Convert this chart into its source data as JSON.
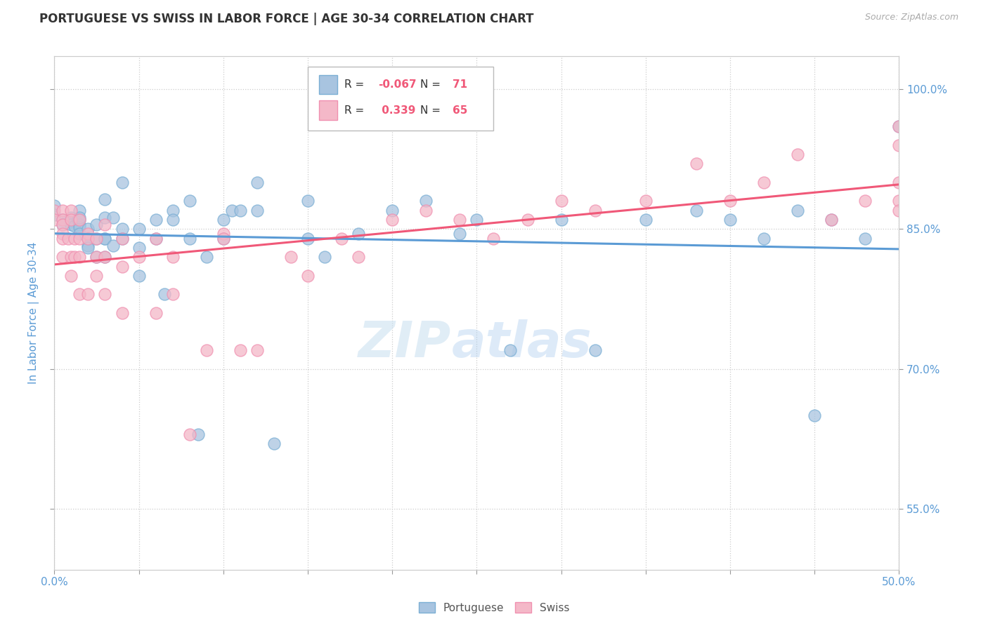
{
  "title": "PORTUGUESE VS SWISS IN LABOR FORCE | AGE 30-34 CORRELATION CHART",
  "source_text": "Source: ZipAtlas.com",
  "ylabel": "In Labor Force | Age 30-34",
  "xlim": [
    0.0,
    0.5
  ],
  "ylim": [
    0.485,
    1.035
  ],
  "ytick_right_labels": [
    "55.0%",
    "70.0%",
    "85.0%",
    "100.0%"
  ],
  "ytick_right_values": [
    0.55,
    0.7,
    0.85,
    1.0
  ],
  "ytick_grid_values": [
    0.55,
    0.7,
    0.85,
    1.0
  ],
  "xtick_labels": [
    "0.0%",
    "",
    "",
    "",
    "",
    "",
    "",
    "",
    "",
    "",
    "50.0%"
  ],
  "xtick_values": [
    0.0,
    0.05,
    0.1,
    0.15,
    0.2,
    0.25,
    0.3,
    0.35,
    0.4,
    0.45,
    0.5
  ],
  "blue_color": "#a8c4e0",
  "pink_color": "#f4b8c8",
  "blue_edge_color": "#7bafd4",
  "pink_edge_color": "#f090b0",
  "blue_line_color": "#5b9bd5",
  "pink_line_color": "#f05878",
  "R_blue": -0.067,
  "N_blue": 71,
  "R_pink": 0.339,
  "N_pink": 65,
  "blue_scatter_x": [
    0.0,
    0.0,
    0.005,
    0.005,
    0.01,
    0.01,
    0.01,
    0.012,
    0.014,
    0.015,
    0.015,
    0.015,
    0.015,
    0.015,
    0.015,
    0.02,
    0.02,
    0.02,
    0.02,
    0.025,
    0.025,
    0.025,
    0.03,
    0.03,
    0.03,
    0.03,
    0.03,
    0.035,
    0.035,
    0.04,
    0.04,
    0.04,
    0.05,
    0.05,
    0.05,
    0.06,
    0.06,
    0.065,
    0.07,
    0.07,
    0.08,
    0.08,
    0.085,
    0.09,
    0.1,
    0.1,
    0.105,
    0.11,
    0.12,
    0.12,
    0.13,
    0.15,
    0.15,
    0.16,
    0.18,
    0.2,
    0.22,
    0.24,
    0.25,
    0.27,
    0.3,
    0.32,
    0.35,
    0.38,
    0.4,
    0.42,
    0.44,
    0.45,
    0.46,
    0.48,
    0.5
  ],
  "blue_scatter_y": [
    0.875,
    0.865,
    0.86,
    0.855,
    0.862,
    0.858,
    0.855,
    0.853,
    0.86,
    0.87,
    0.86,
    0.855,
    0.852,
    0.845,
    0.862,
    0.832,
    0.84,
    0.85,
    0.83,
    0.855,
    0.84,
    0.82,
    0.84,
    0.862,
    0.882,
    0.84,
    0.82,
    0.832,
    0.862,
    0.9,
    0.85,
    0.84,
    0.8,
    0.83,
    0.85,
    0.86,
    0.84,
    0.78,
    0.87,
    0.86,
    0.88,
    0.84,
    0.63,
    0.82,
    0.86,
    0.84,
    0.87,
    0.87,
    0.9,
    0.87,
    0.62,
    0.84,
    0.88,
    0.82,
    0.845,
    0.87,
    0.88,
    0.845,
    0.86,
    0.72,
    0.86,
    0.72,
    0.86,
    0.87,
    0.86,
    0.84,
    0.87,
    0.65,
    0.86,
    0.84,
    0.96
  ],
  "pink_scatter_x": [
    0.0,
    0.0,
    0.005,
    0.005,
    0.005,
    0.005,
    0.005,
    0.005,
    0.008,
    0.01,
    0.01,
    0.01,
    0.01,
    0.012,
    0.012,
    0.015,
    0.015,
    0.015,
    0.015,
    0.02,
    0.02,
    0.02,
    0.025,
    0.025,
    0.025,
    0.03,
    0.03,
    0.03,
    0.04,
    0.04,
    0.04,
    0.05,
    0.06,
    0.06,
    0.07,
    0.07,
    0.08,
    0.09,
    0.1,
    0.1,
    0.11,
    0.12,
    0.14,
    0.15,
    0.17,
    0.18,
    0.2,
    0.22,
    0.24,
    0.26,
    0.28,
    0.3,
    0.32,
    0.35,
    0.38,
    0.4,
    0.42,
    0.44,
    0.46,
    0.48,
    0.5,
    0.5,
    0.5,
    0.5,
    0.5
  ],
  "pink_scatter_y": [
    0.87,
    0.86,
    0.87,
    0.86,
    0.855,
    0.845,
    0.84,
    0.82,
    0.84,
    0.87,
    0.86,
    0.82,
    0.8,
    0.84,
    0.82,
    0.86,
    0.84,
    0.82,
    0.78,
    0.845,
    0.84,
    0.78,
    0.84,
    0.82,
    0.8,
    0.855,
    0.82,
    0.78,
    0.84,
    0.81,
    0.76,
    0.82,
    0.84,
    0.76,
    0.82,
    0.78,
    0.63,
    0.72,
    0.845,
    0.84,
    0.72,
    0.72,
    0.82,
    0.8,
    0.84,
    0.82,
    0.86,
    0.87,
    0.86,
    0.84,
    0.86,
    0.88,
    0.87,
    0.88,
    0.92,
    0.88,
    0.9,
    0.93,
    0.86,
    0.88,
    0.96,
    0.94,
    0.9,
    0.88,
    0.87
  ],
  "watermark_zip": "ZIP",
  "watermark_atlas": "atlas",
  "grid_color": "#cccccc",
  "background_color": "#ffffff",
  "title_color": "#333333",
  "axis_label_color": "#5b9bd5",
  "tick_color": "#5b9bd5",
  "legend_box_color": "#ffffff",
  "legend_border_color": "#cccccc"
}
